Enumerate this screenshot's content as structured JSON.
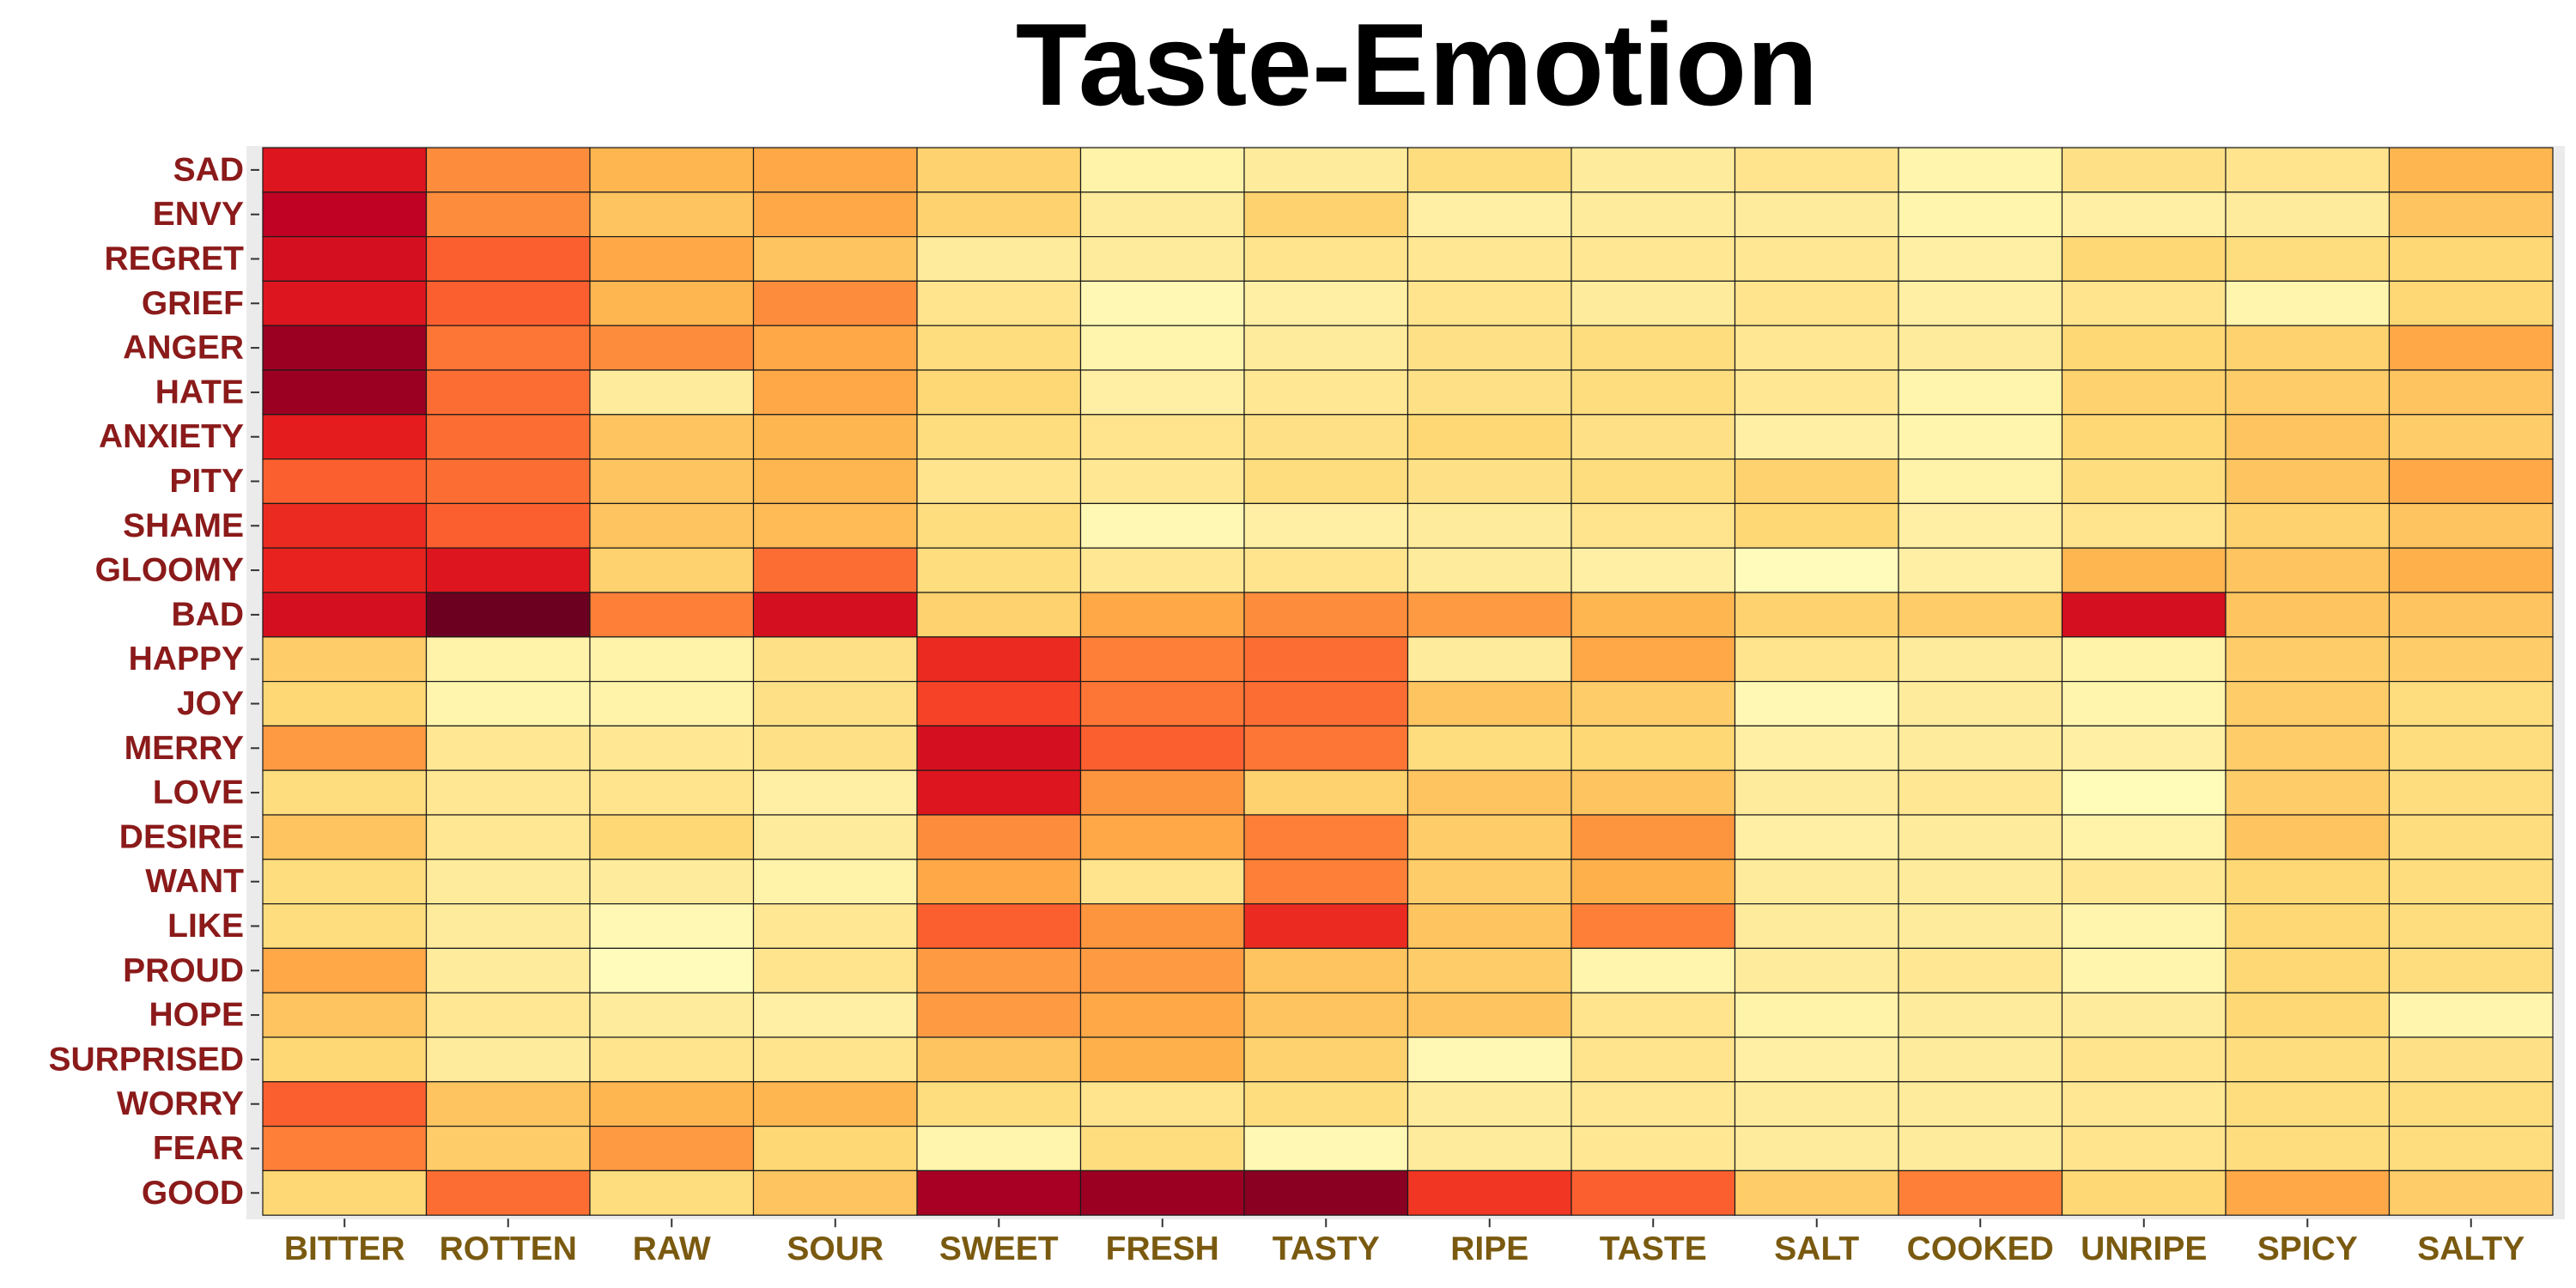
{
  "chart_data": {
    "type": "heatmap",
    "title": "Taste-Emotion",
    "xlabel": "",
    "ylabel": "",
    "x": [
      "BITTER",
      "ROTTEN",
      "RAW",
      "SOUR",
      "SWEET",
      "FRESH",
      "TASTY",
      "RIPE",
      "TASTE",
      "SALT",
      "COOKED",
      "UNRIPE",
      "SPICY",
      "SALTY"
    ],
    "y": [
      "SAD",
      "ENVY",
      "REGRET",
      "GRIEF",
      "ANGER",
      "HATE",
      "ANXIETY",
      "PITY",
      "SHAME",
      "GLOOMY",
      "BAD",
      "HAPPY",
      "JOY",
      "MERRY",
      "LOVE",
      "DESIRE",
      "WANT",
      "LIKE",
      "PROUD",
      "HOPE",
      "SURPRISED",
      "WORRY",
      "FEAR",
      "GOOD"
    ],
    "values": [
      [
        0.85,
        0.55,
        0.4,
        0.45,
        0.3,
        0.1,
        0.15,
        0.25,
        0.15,
        0.2,
        0.08,
        0.22,
        0.2,
        0.4
      ],
      [
        0.95,
        0.55,
        0.35,
        0.45,
        0.3,
        0.15,
        0.3,
        0.12,
        0.15,
        0.15,
        0.08,
        0.12,
        0.15,
        0.35
      ],
      [
        0.88,
        0.65,
        0.45,
        0.35,
        0.15,
        0.15,
        0.2,
        0.18,
        0.18,
        0.18,
        0.12,
        0.28,
        0.25,
        0.28
      ],
      [
        0.85,
        0.65,
        0.4,
        0.55,
        0.2,
        0.05,
        0.12,
        0.2,
        0.15,
        0.2,
        0.12,
        0.2,
        0.08,
        0.28
      ],
      [
        1.02,
        0.6,
        0.55,
        0.45,
        0.25,
        0.08,
        0.15,
        0.22,
        0.25,
        0.18,
        0.15,
        0.28,
        0.3,
        0.45
      ],
      [
        1.02,
        0.62,
        0.15,
        0.45,
        0.28,
        0.12,
        0.18,
        0.22,
        0.25,
        0.18,
        0.08,
        0.3,
        0.32,
        0.35
      ],
      [
        0.82,
        0.62,
        0.35,
        0.4,
        0.25,
        0.2,
        0.22,
        0.28,
        0.22,
        0.12,
        0.08,
        0.28,
        0.35,
        0.32
      ],
      [
        0.65,
        0.62,
        0.35,
        0.4,
        0.2,
        0.18,
        0.25,
        0.22,
        0.25,
        0.3,
        0.1,
        0.25,
        0.35,
        0.45
      ],
      [
        0.78,
        0.65,
        0.35,
        0.38,
        0.25,
        0.05,
        0.12,
        0.15,
        0.2,
        0.28,
        0.12,
        0.2,
        0.3,
        0.35
      ],
      [
        0.8,
        0.85,
        0.3,
        0.62,
        0.25,
        0.18,
        0.2,
        0.15,
        0.12,
        0.02,
        0.12,
        0.4,
        0.35,
        0.42
      ],
      [
        0.88,
        1.1,
        0.58,
        0.88,
        0.3,
        0.45,
        0.55,
        0.5,
        0.4,
        0.3,
        0.32,
        0.88,
        0.35,
        0.35
      ],
      [
        0.32,
        0.1,
        0.1,
        0.22,
        0.78,
        0.58,
        0.62,
        0.15,
        0.45,
        0.2,
        0.15,
        0.1,
        0.32,
        0.32
      ],
      [
        0.28,
        0.08,
        0.1,
        0.22,
        0.72,
        0.6,
        0.62,
        0.35,
        0.32,
        0.05,
        0.15,
        0.08,
        0.32,
        0.25
      ],
      [
        0.5,
        0.18,
        0.18,
        0.22,
        0.88,
        0.65,
        0.6,
        0.25,
        0.28,
        0.12,
        0.15,
        0.12,
        0.32,
        0.25
      ],
      [
        0.25,
        0.18,
        0.2,
        0.12,
        0.85,
        0.52,
        0.3,
        0.35,
        0.35,
        0.15,
        0.18,
        0.03,
        0.32,
        0.25
      ],
      [
        0.35,
        0.18,
        0.28,
        0.15,
        0.55,
        0.45,
        0.58,
        0.32,
        0.52,
        0.12,
        0.15,
        0.1,
        0.35,
        0.25
      ],
      [
        0.25,
        0.15,
        0.15,
        0.1,
        0.45,
        0.2,
        0.58,
        0.32,
        0.42,
        0.15,
        0.15,
        0.18,
        0.28,
        0.25
      ],
      [
        0.25,
        0.15,
        0.05,
        0.18,
        0.65,
        0.52,
        0.78,
        0.35,
        0.58,
        0.15,
        0.15,
        0.08,
        0.28,
        0.25
      ],
      [
        0.45,
        0.15,
        0.02,
        0.2,
        0.5,
        0.5,
        0.35,
        0.32,
        0.08,
        0.15,
        0.18,
        0.08,
        0.28,
        0.25
      ],
      [
        0.35,
        0.18,
        0.15,
        0.12,
        0.5,
        0.45,
        0.35,
        0.35,
        0.2,
        0.1,
        0.15,
        0.15,
        0.28,
        0.08
      ],
      [
        0.28,
        0.15,
        0.2,
        0.2,
        0.35,
        0.42,
        0.3,
        0.05,
        0.2,
        0.12,
        0.15,
        0.2,
        0.25,
        0.22
      ],
      [
        0.65,
        0.35,
        0.4,
        0.4,
        0.25,
        0.2,
        0.25,
        0.15,
        0.18,
        0.15,
        0.15,
        0.18,
        0.25,
        0.25
      ],
      [
        0.58,
        0.32,
        0.5,
        0.28,
        0.08,
        0.25,
        0.05,
        0.15,
        0.18,
        0.15,
        0.15,
        0.2,
        0.25,
        0.25
      ],
      [
        0.28,
        0.62,
        0.25,
        0.35,
        1.0,
        1.02,
        1.05,
        0.75,
        0.65,
        0.32,
        0.58,
        0.28,
        0.45,
        0.32
      ]
    ],
    "value_range": [
      0,
      1.1
    ],
    "colorscale": [
      "#ffffc0",
      "#ffeda0",
      "#fed976",
      "#feb24c",
      "#fd8d3c",
      "#fc4e2a",
      "#e31a1c",
      "#bd0026",
      "#6b0020"
    ],
    "grid": true,
    "legend": "none",
    "colors": {
      "panel_background": "#ebebeb",
      "y_label": "#8B1A1A",
      "x_label": "#7A5A10",
      "title": "#000000"
    }
  }
}
